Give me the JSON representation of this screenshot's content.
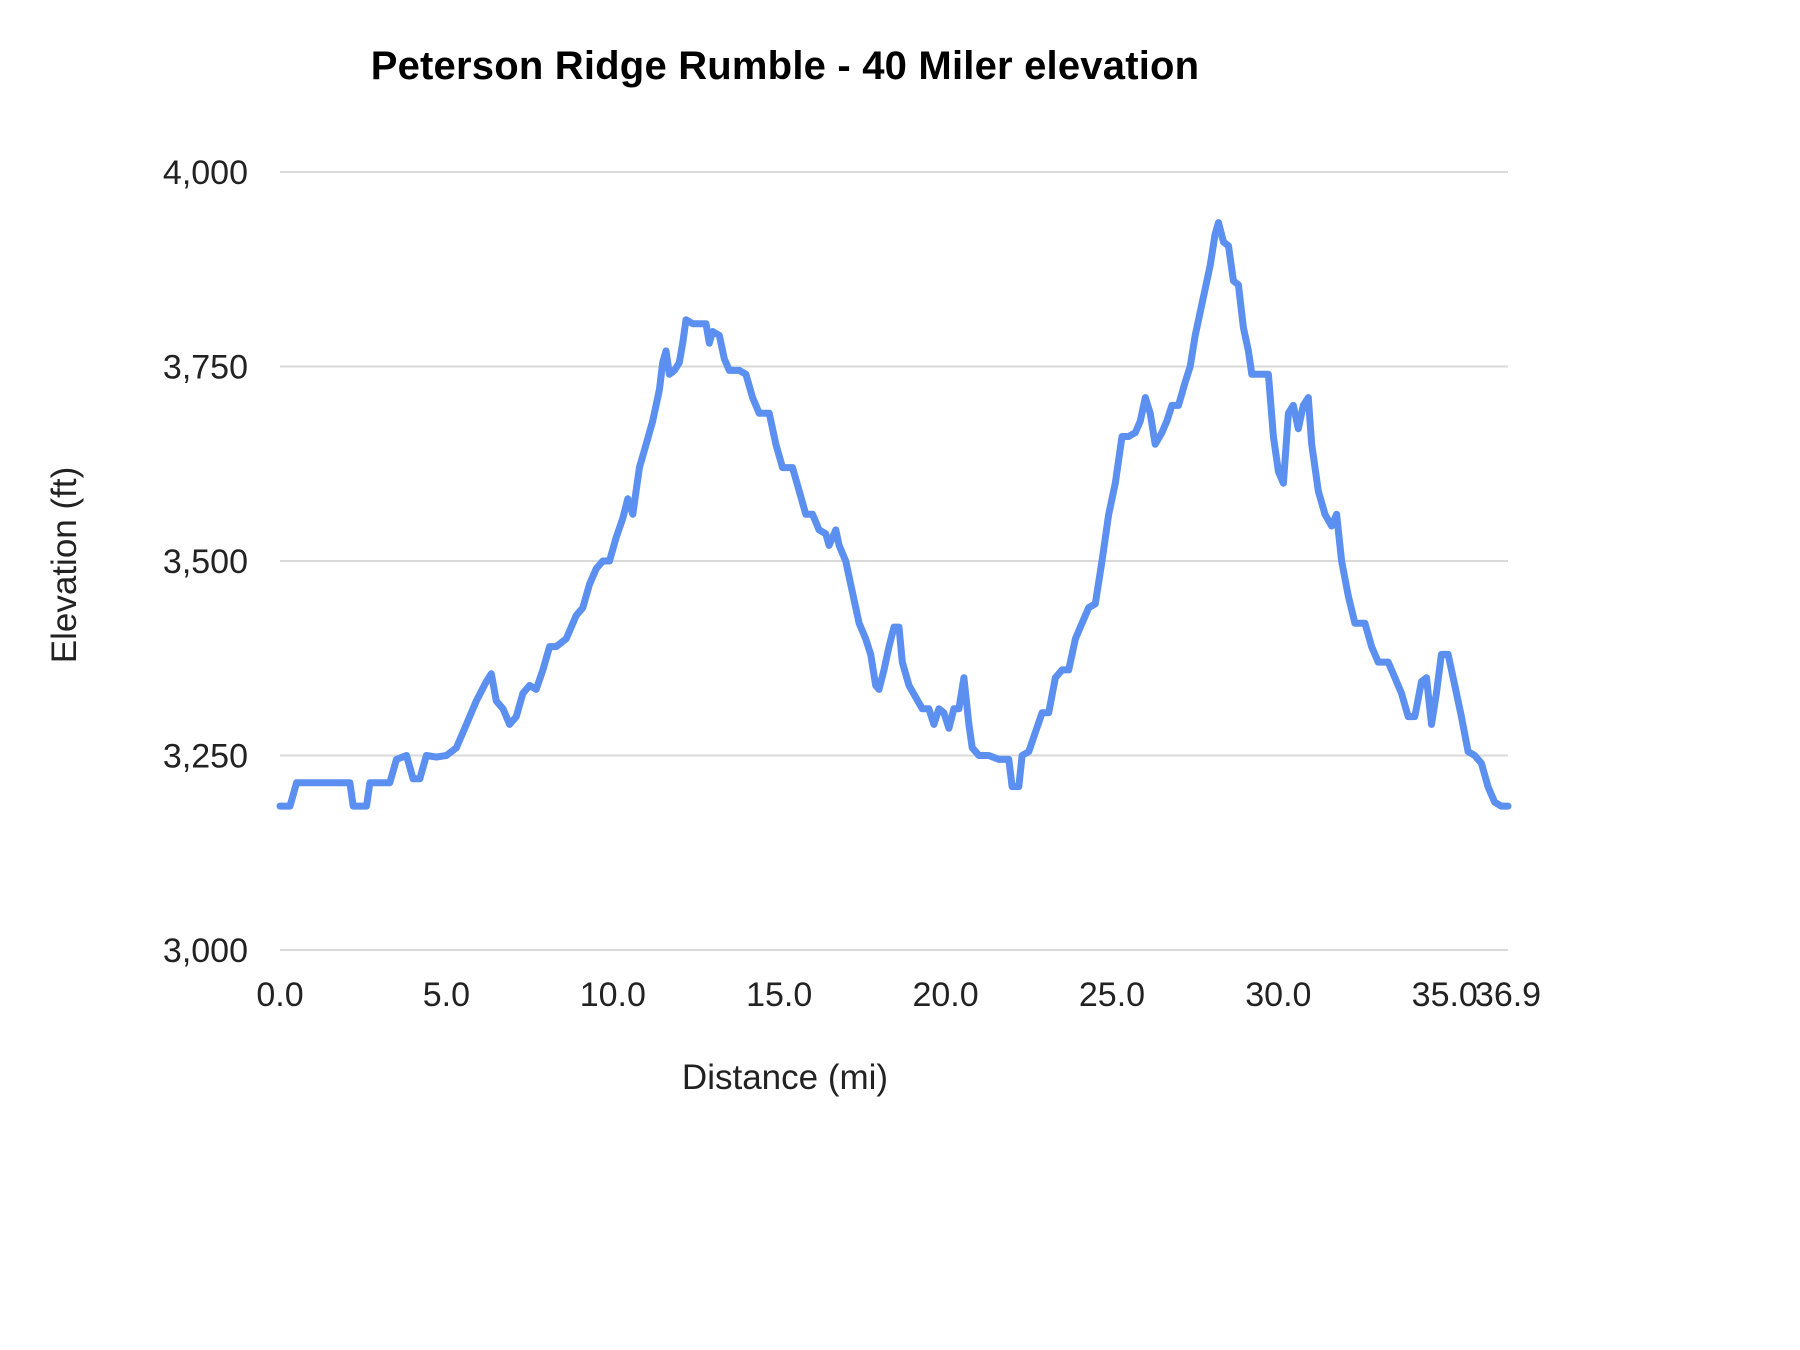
{
  "chart_data": {
    "type": "line",
    "title": "Peterson Ridge Rumble - 40 Miler elevation",
    "xlabel": "Distance (mi)",
    "ylabel": "Elevation (ft)",
    "xlim": [
      0,
      36.9
    ],
    "ylim": [
      3000,
      4000
    ],
    "grid": "horizontal",
    "legend": "none",
    "line_color": "#5b8ff0",
    "grid_color": "#d9d9d9",
    "text_color": "#222222",
    "title_color": "#000000",
    "yticks": {
      "values": [
        3000,
        3250,
        3500,
        3750,
        4000
      ],
      "labels": [
        "3,000",
        "3,250",
        "3,500",
        "3,750",
        "4,000"
      ]
    },
    "xticks": {
      "values": [
        0,
        5,
        10,
        15,
        20,
        25,
        30,
        35,
        36.9
      ],
      "labels": [
        "0.0",
        "5.0",
        "10.0",
        "15.0",
        "20.0",
        "25.0",
        "30.0",
        "35.0",
        "36.9"
      ]
    },
    "series": [
      {
        "name": "Elevation",
        "points": [
          [
            0.0,
            3185
          ],
          [
            0.3,
            3185
          ],
          [
            0.5,
            3215
          ],
          [
            1.0,
            3215
          ],
          [
            1.5,
            3215
          ],
          [
            2.1,
            3215
          ],
          [
            2.2,
            3185
          ],
          [
            2.6,
            3185
          ],
          [
            2.7,
            3215
          ],
          [
            3.3,
            3215
          ],
          [
            3.5,
            3245
          ],
          [
            3.8,
            3250
          ],
          [
            4.0,
            3220
          ],
          [
            4.2,
            3220
          ],
          [
            4.4,
            3250
          ],
          [
            4.7,
            3248
          ],
          [
            5.0,
            3250
          ],
          [
            5.3,
            3260
          ],
          [
            5.6,
            3290
          ],
          [
            5.9,
            3320
          ],
          [
            6.2,
            3345
          ],
          [
            6.35,
            3355
          ],
          [
            6.5,
            3320
          ],
          [
            6.7,
            3310
          ],
          [
            6.9,
            3290
          ],
          [
            7.1,
            3300
          ],
          [
            7.3,
            3330
          ],
          [
            7.5,
            3340
          ],
          [
            7.7,
            3335
          ],
          [
            7.9,
            3360
          ],
          [
            8.1,
            3390
          ],
          [
            8.3,
            3390
          ],
          [
            8.6,
            3400
          ],
          [
            8.9,
            3430
          ],
          [
            9.1,
            3440
          ],
          [
            9.3,
            3470
          ],
          [
            9.5,
            3490
          ],
          [
            9.7,
            3500
          ],
          [
            9.9,
            3500
          ],
          [
            10.1,
            3530
          ],
          [
            10.3,
            3555
          ],
          [
            10.45,
            3580
          ],
          [
            10.6,
            3560
          ],
          [
            10.8,
            3620
          ],
          [
            11.0,
            3650
          ],
          [
            11.2,
            3680
          ],
          [
            11.4,
            3720
          ],
          [
            11.5,
            3755
          ],
          [
            11.6,
            3770
          ],
          [
            11.7,
            3740
          ],
          [
            11.85,
            3745
          ],
          [
            12.0,
            3755
          ],
          [
            12.1,
            3780
          ],
          [
            12.2,
            3810
          ],
          [
            12.4,
            3805
          ],
          [
            12.6,
            3805
          ],
          [
            12.8,
            3805
          ],
          [
            12.9,
            3780
          ],
          [
            13.0,
            3795
          ],
          [
            13.2,
            3790
          ],
          [
            13.35,
            3760
          ],
          [
            13.5,
            3745
          ],
          [
            13.8,
            3745
          ],
          [
            14.0,
            3740
          ],
          [
            14.2,
            3710
          ],
          [
            14.4,
            3690
          ],
          [
            14.7,
            3690
          ],
          [
            14.9,
            3650
          ],
          [
            15.1,
            3620
          ],
          [
            15.4,
            3620
          ],
          [
            15.6,
            3590
          ],
          [
            15.8,
            3560
          ],
          [
            16.0,
            3560
          ],
          [
            16.2,
            3540
          ],
          [
            16.4,
            3535
          ],
          [
            16.5,
            3520
          ],
          [
            16.7,
            3540
          ],
          [
            16.8,
            3520
          ],
          [
            17.0,
            3500
          ],
          [
            17.2,
            3460
          ],
          [
            17.4,
            3420
          ],
          [
            17.6,
            3400
          ],
          [
            17.75,
            3380
          ],
          [
            17.9,
            3340
          ],
          [
            18.0,
            3335
          ],
          [
            18.15,
            3360
          ],
          [
            18.3,
            3390
          ],
          [
            18.45,
            3415
          ],
          [
            18.6,
            3415
          ],
          [
            18.7,
            3370
          ],
          [
            18.9,
            3340
          ],
          [
            19.1,
            3325
          ],
          [
            19.3,
            3310
          ],
          [
            19.5,
            3310
          ],
          [
            19.65,
            3290
          ],
          [
            19.8,
            3310
          ],
          [
            19.95,
            3305
          ],
          [
            20.1,
            3285
          ],
          [
            20.25,
            3310
          ],
          [
            20.4,
            3310
          ],
          [
            20.55,
            3350
          ],
          [
            20.7,
            3290
          ],
          [
            20.8,
            3260
          ],
          [
            21.0,
            3250
          ],
          [
            21.3,
            3250
          ],
          [
            21.6,
            3245
          ],
          [
            21.9,
            3245
          ],
          [
            22.0,
            3210
          ],
          [
            22.2,
            3210
          ],
          [
            22.3,
            3250
          ],
          [
            22.5,
            3255
          ],
          [
            22.7,
            3280
          ],
          [
            22.9,
            3305
          ],
          [
            23.1,
            3305
          ],
          [
            23.3,
            3350
          ],
          [
            23.5,
            3360
          ],
          [
            23.7,
            3360
          ],
          [
            23.9,
            3400
          ],
          [
            24.1,
            3420
          ],
          [
            24.3,
            3440
          ],
          [
            24.5,
            3445
          ],
          [
            24.7,
            3500
          ],
          [
            24.9,
            3560
          ],
          [
            25.1,
            3600
          ],
          [
            25.3,
            3660
          ],
          [
            25.5,
            3660
          ],
          [
            25.7,
            3665
          ],
          [
            25.85,
            3680
          ],
          [
            26.0,
            3710
          ],
          [
            26.15,
            3690
          ],
          [
            26.3,
            3650
          ],
          [
            26.5,
            3665
          ],
          [
            26.65,
            3680
          ],
          [
            26.8,
            3700
          ],
          [
            27.0,
            3700
          ],
          [
            27.2,
            3730
          ],
          [
            27.35,
            3750
          ],
          [
            27.5,
            3790
          ],
          [
            27.65,
            3820
          ],
          [
            27.8,
            3850
          ],
          [
            27.95,
            3880
          ],
          [
            28.1,
            3920
          ],
          [
            28.2,
            3935
          ],
          [
            28.35,
            3910
          ],
          [
            28.5,
            3905
          ],
          [
            28.65,
            3860
          ],
          [
            28.8,
            3855
          ],
          [
            28.95,
            3800
          ],
          [
            29.1,
            3770
          ],
          [
            29.2,
            3740
          ],
          [
            29.5,
            3740
          ],
          [
            29.7,
            3740
          ],
          [
            29.85,
            3660
          ],
          [
            30.0,
            3615
          ],
          [
            30.15,
            3600
          ],
          [
            30.3,
            3690
          ],
          [
            30.45,
            3700
          ],
          [
            30.6,
            3670
          ],
          [
            30.75,
            3700
          ],
          [
            30.9,
            3710
          ],
          [
            31.0,
            3650
          ],
          [
            31.2,
            3590
          ],
          [
            31.4,
            3560
          ],
          [
            31.6,
            3545
          ],
          [
            31.75,
            3560
          ],
          [
            31.9,
            3500
          ],
          [
            32.1,
            3455
          ],
          [
            32.3,
            3420
          ],
          [
            32.6,
            3420
          ],
          [
            32.8,
            3390
          ],
          [
            33.0,
            3370
          ],
          [
            33.3,
            3370
          ],
          [
            33.5,
            3350
          ],
          [
            33.7,
            3330
          ],
          [
            33.9,
            3300
          ],
          [
            34.1,
            3300
          ],
          [
            34.3,
            3345
          ],
          [
            34.45,
            3350
          ],
          [
            34.6,
            3290
          ],
          [
            34.75,
            3330
          ],
          [
            34.9,
            3380
          ],
          [
            35.1,
            3380
          ],
          [
            35.3,
            3340
          ],
          [
            35.5,
            3300
          ],
          [
            35.7,
            3255
          ],
          [
            35.9,
            3250
          ],
          [
            36.1,
            3240
          ],
          [
            36.3,
            3210
          ],
          [
            36.5,
            3190
          ],
          [
            36.7,
            3185
          ],
          [
            36.9,
            3185
          ]
        ]
      }
    ]
  }
}
